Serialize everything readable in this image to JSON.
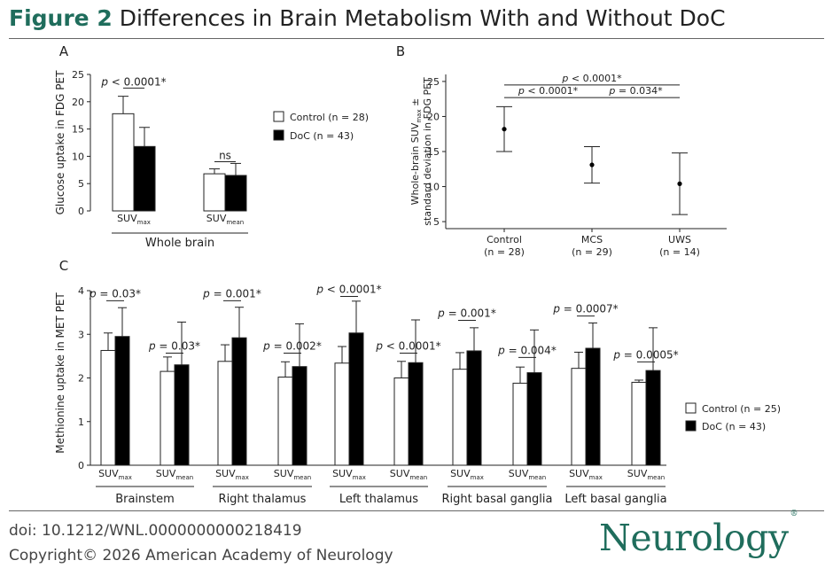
{
  "header": {
    "figure_number": "Figure 2",
    "title": "Differences in Brain Metabolism With and Without DoC"
  },
  "footer": {
    "doi": "doi: 10.1212/WNL.0000000000218419",
    "copyright": "Copyright© 2026 American Academy of Neurology",
    "logo": "Neurology",
    "logo_mark": "®"
  },
  "colors": {
    "accent": "#1f6d5c",
    "control_fill": "#ffffff",
    "doc_fill": "#000000"
  },
  "chart_data": [
    {
      "panel": "A",
      "type": "bar",
      "ylabel": "Glucose uptake in FDG PET",
      "ylim": [
        0,
        25
      ],
      "yticks": [
        0,
        5,
        10,
        15,
        20,
        25
      ],
      "legend_position": "right",
      "series": [
        {
          "name": "Control (n = 28)",
          "fill": "#ffffff",
          "values": [
            17.8,
            6.8
          ],
          "errors": [
            3.2,
            0.9
          ]
        },
        {
          "name": "DoC (n = 43)",
          "fill": "#000000",
          "values": [
            11.8,
            6.5
          ],
          "errors": [
            3.5,
            2.2
          ]
        }
      ],
      "categories": [
        {
          "base": "SUV",
          "sub": "max"
        },
        {
          "base": "SUV",
          "sub": "mean"
        }
      ],
      "groups": [
        {
          "label": "Whole brain",
          "categories": [
            0,
            1
          ]
        }
      ],
      "annotations": [
        {
          "category": 0,
          "p_italic": "p",
          "text": " < 0.0001*",
          "y": 23.0
        },
        {
          "category": 1,
          "p_italic": "",
          "text": "ns",
          "y": 9.5
        }
      ]
    },
    {
      "panel": "B",
      "type": "scatter",
      "ylabel_line1": "Whole-brain SUV",
      "ylabel_sub": "max",
      "ylabel_line1_end": " ±",
      "ylabel_line2": "standard deviation in FDG PET",
      "ylim": [
        4,
        26
      ],
      "yticks": [
        5,
        10,
        15,
        20,
        25
      ],
      "categories": [
        {
          "name": "Control",
          "n": "(n = 28)"
        },
        {
          "name": "MCS",
          "n": "(n = 29)"
        },
        {
          "name": "UWS",
          "n": "(n = 14)"
        }
      ],
      "means": [
        18.2,
        13.1,
        10.4
      ],
      "sd": [
        3.2,
        2.6,
        4.4
      ],
      "comparisons": [
        {
          "from": 0,
          "to": 2,
          "p_italic": "p",
          "text": " < 0.0001*",
          "y": 25.0
        },
        {
          "from": 0,
          "to": 1,
          "p_italic": "p",
          "text": " < 0.0001*",
          "y": 23.2
        },
        {
          "from": 1,
          "to": 2,
          "p_italic": "p",
          "text": " = 0.034*",
          "y": 23.2
        }
      ]
    },
    {
      "panel": "C",
      "type": "bar",
      "ylabel": "Methionine uptake in MET PET",
      "ylim": [
        0,
        4
      ],
      "yticks": [
        0,
        1,
        2,
        3,
        4
      ],
      "legend_position": "right",
      "series": [
        {
          "name": "Control (n = 25)",
          "fill": "#ffffff",
          "values": [
            2.63,
            2.15,
            2.38,
            2.02,
            2.34,
            2.0,
            2.2,
            1.88,
            2.22,
            1.9
          ],
          "errors": [
            0.4,
            0.33,
            0.38,
            0.35,
            0.38,
            0.38,
            0.38,
            0.37,
            0.37,
            0.05
          ]
        },
        {
          "name": "DoC (n = 43)",
          "fill": "#000000",
          "values": [
            2.95,
            2.3,
            2.92,
            2.26,
            3.03,
            2.35,
            2.62,
            2.12,
            2.68,
            2.17
          ],
          "errors": [
            0.66,
            0.98,
            0.7,
            0.98,
            0.73,
            0.98,
            0.53,
            0.98,
            0.58,
            0.98
          ]
        }
      ],
      "categories": [
        {
          "base": "SUV",
          "sub": "max"
        },
        {
          "base": "SUV",
          "sub": "mean"
        },
        {
          "base": "SUV",
          "sub": "max"
        },
        {
          "base": "SUV",
          "sub": "mean"
        },
        {
          "base": "SUV",
          "sub": "max"
        },
        {
          "base": "SUV",
          "sub": "mean"
        },
        {
          "base": "SUV",
          "sub": "max"
        },
        {
          "base": "SUV",
          "sub": "mean"
        },
        {
          "base": "SUV",
          "sub": "max"
        },
        {
          "base": "SUV",
          "sub": "mean"
        }
      ],
      "groups": [
        {
          "label": "Brainstem",
          "categories": [
            0,
            1
          ]
        },
        {
          "label": "Right thalamus",
          "categories": [
            2,
            3
          ]
        },
        {
          "label": "Left thalamus",
          "categories": [
            4,
            5
          ]
        },
        {
          "label": "Right basal ganglia",
          "categories": [
            6,
            7
          ]
        },
        {
          "label": "Left basal ganglia",
          "categories": [
            8,
            9
          ]
        }
      ],
      "annotations": [
        {
          "category": 0,
          "p_italic": "p",
          "text": " = 0.03*",
          "y": 3.85
        },
        {
          "category": 1,
          "p_italic": "p",
          "text": " = 0.03*",
          "y": 2.65
        },
        {
          "category": 2,
          "p_italic": "p",
          "text": " = 0.001*",
          "y": 3.85
        },
        {
          "category": 3,
          "p_italic": "p",
          "text": " = 0.002*",
          "y": 2.65
        },
        {
          "category": 4,
          "p_italic": "p",
          "text": " < 0.0001*",
          "y": 3.95
        },
        {
          "category": 5,
          "p_italic": "p",
          "text": " < 0.0001*",
          "y": 2.65
        },
        {
          "category": 6,
          "p_italic": "p",
          "text": " = 0.001*",
          "y": 3.4
        },
        {
          "category": 7,
          "p_italic": "p",
          "text": " = 0.004*",
          "y": 2.55
        },
        {
          "category": 8,
          "p_italic": "p",
          "text": " = 0.0007*",
          "y": 3.5
        },
        {
          "category": 9,
          "p_italic": "p",
          "text": " = 0.0005*",
          "y": 2.45
        }
      ]
    }
  ]
}
